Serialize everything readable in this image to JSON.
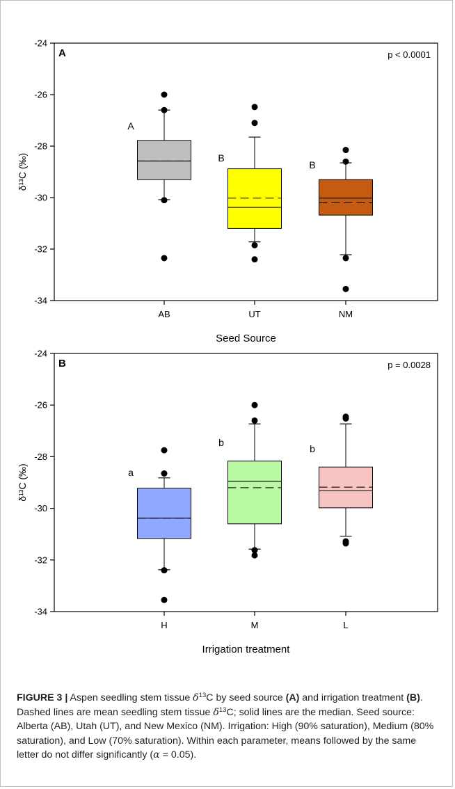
{
  "chart_data": [
    {
      "type": "box",
      "panel_label": "A",
      "pvalue_text": "p < 0.0001",
      "ylabel": "δ¹³C (‰)",
      "xlabel": "Seed Source",
      "ylim": [
        -34,
        -24
      ],
      "yticks": [
        -24,
        -26,
        -28,
        -30,
        -32,
        -34
      ],
      "boxes": [
        {
          "category": "AB",
          "letter": "A",
          "color": "#bfbfbf",
          "q1": -29.3,
          "median": -28.58,
          "mean": -28.58,
          "q3": -27.78,
          "whisker_low": -30.08,
          "whisker_high": -26.6,
          "outliers": [
            -26.0,
            -26.6,
            -30.1,
            -32.35
          ]
        },
        {
          "category": "UT",
          "letter": "B",
          "color": "#ffff00",
          "q1": -31.2,
          "median": -30.38,
          "mean": -30.02,
          "q3": -28.88,
          "whisker_low": -31.72,
          "whisker_high": -27.65,
          "outliers": [
            -26.48,
            -27.1,
            -31.85,
            -32.4
          ]
        },
        {
          "category": "NM",
          "letter": "B",
          "color": "#c55a11",
          "q1": -30.68,
          "median": -30.02,
          "mean": -30.2,
          "q3": -29.3,
          "whisker_low": -32.22,
          "whisker_high": -28.65,
          "outliers": [
            -28.15,
            -28.6,
            -32.35,
            -33.55
          ]
        }
      ]
    },
    {
      "type": "box",
      "panel_label": "B",
      "pvalue_text": "p = 0.0028",
      "ylabel": "δ¹³C (‰)",
      "xlabel": "Irrigation treatment",
      "ylim": [
        -34,
        -24
      ],
      "yticks": [
        -24,
        -26,
        -28,
        -30,
        -32,
        -34
      ],
      "boxes": [
        {
          "category": "H",
          "letter": "a",
          "color": "#8ea9ff",
          "q1": -31.17,
          "median": -30.38,
          "mean": -30.38,
          "q3": -29.22,
          "whisker_low": -32.38,
          "whisker_high": -28.82,
          "outliers": [
            -27.75,
            -28.65,
            -32.4,
            -33.55
          ]
        },
        {
          "category": "M",
          "letter": "b",
          "color": "#b9f9a4",
          "q1": -30.6,
          "median": -28.95,
          "mean": -29.2,
          "q3": -28.17,
          "whisker_low": -31.58,
          "whisker_high": -26.73,
          "outliers": [
            -26.0,
            -26.6,
            -31.62,
            -31.82
          ]
        },
        {
          "category": "L",
          "letter": "b",
          "color": "#f8c3c3",
          "q1": -29.98,
          "median": -29.32,
          "mean": -29.18,
          "q3": -28.4,
          "whisker_low": -31.08,
          "whisker_high": -26.73,
          "outliers": [
            -26.45,
            -26.52,
            -31.28,
            -31.36
          ]
        }
      ]
    }
  ],
  "caption": {
    "label": "FIGURE 3 |",
    "p1": " Aspen seedling stem tissue ",
    "delta": "δ",
    "sup": "13",
    "p2": "C by seed source ",
    "refA": "(A)",
    "p3": " and irrigation treatment ",
    "refB": "(B)",
    "p4": ". Dashed lines are mean seedling stem tissue ",
    "p5": "C; solid lines are the median. Seed source: Alberta (AB), Utah (UT), and New Mexico (NM). Irrigation: High (90% saturation), Medium (80% saturation), and Low (70% saturation). Within each parameter, means followed by the same letter do not differ significantly (",
    "alpha": "α",
    "p6": " = 0.05)."
  }
}
